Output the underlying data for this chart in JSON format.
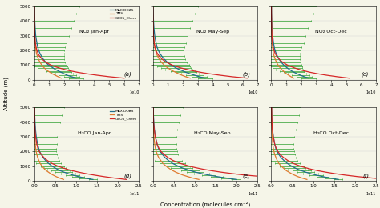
{
  "altitude": [
    100,
    200,
    300,
    400,
    500,
    600,
    700,
    800,
    900,
    1000,
    1200,
    1400,
    1600,
    1800,
    2000,
    2200,
    2500,
    3000,
    3500,
    4000,
    4500,
    5000
  ],
  "no2_jan_apr_maxdoas": [
    28000000000.0,
    25000000000.0,
    22000000000.0,
    20000000000.0,
    18000000000.0,
    16000000000.0,
    14000000000.0,
    12500000000.0,
    11000000000.0,
    9500000000.0,
    7500000000.0,
    6000000000.0,
    4800000000.0,
    3800000000.0,
    3000000000.0,
    2400000000.0,
    1800000000.0,
    1000000000.0,
    650000000.0,
    400000000.0,
    250000000.0,
    150000000.0
  ],
  "no2_jan_apr_tms": [
    18000000000.0,
    16000000000.0,
    14000000000.0,
    12000000000.0,
    10500000000.0,
    9000000000.0,
    7800000000.0,
    6700000000.0,
    5800000000.0,
    5000000000.0,
    3800000000.0,
    2800000000.0,
    2100000000.0,
    1500000000.0,
    1200000000.0,
    900000000.0,
    650000000.0,
    350000000.0,
    200000000.0,
    120000000.0,
    70000000.0,
    40000000.0
  ],
  "no2_jan_apr_geos": [
    60000000000.0,
    50000000000.0,
    42000000000.0,
    35000000000.0,
    29000000000.0,
    24000000000.0,
    20000000000.0,
    16500000000.0,
    13500000000.0,
    11000000000.0,
    7500000000.0,
    5200000000.0,
    3600000000.0,
    2500000000.0,
    1800000000.0,
    1300000000.0,
    800000000.0,
    400000000.0,
    220000000.0,
    130000000.0,
    70000000.0,
    40000000.0
  ],
  "no2_jan_apr_err": [
    5000000000.0,
    5000000000.0,
    6000000000.0,
    6000000000.0,
    7000000000.0,
    8000000000.0,
    9000000000.0,
    10000000000.0,
    11000000000.0,
    12000000000.0,
    13000000000.0,
    14000000000.0,
    15000000000.0,
    16000000000.0,
    17000000000.0,
    18000000000.0,
    20000000000.0,
    22000000000.0,
    24000000000.0,
    26000000000.0,
    28000000000.0,
    30000000000.0
  ],
  "no2_may_sep_maxdoas": [
    35000000000.0,
    31000000000.0,
    28000000000.0,
    25000000000.0,
    22000000000.0,
    20000000000.0,
    17500000000.0,
    15500000000.0,
    13800000000.0,
    12200000000.0,
    9600000000.0,
    7600000000.0,
    6000000000.0,
    4700000000.0,
    3700000000.0,
    2900000000.0,
    2200000000.0,
    1300000000.0,
    800000000.0,
    500000000.0,
    300000000.0,
    180000000.0
  ],
  "no2_may_sep_tms": [
    25000000000.0,
    22000000000.0,
    19500000000.0,
    17200000000.0,
    15200000000.0,
    13300000000.0,
    11600000000.0,
    10000000000.0,
    8700000000.0,
    7500000000.0,
    5700000000.0,
    4300000000.0,
    3200000000.0,
    2400000000.0,
    1800000000.0,
    1400000000.0,
    1000000000.0,
    550000000.0,
    320000000.0,
    180000000.0,
    100000000.0,
    60000000.0
  ],
  "no2_may_sep_geos": [
    63000000000.0,
    53000000000.0,
    45000000000.0,
    38000000000.0,
    32000000000.0,
    27000000000.0,
    22500000000.0,
    18700000000.0,
    15500000000.0,
    12800000000.0,
    8800000000.0,
    6100000000.0,
    4300000000.0,
    3000000000.0,
    2100000000.0,
    1500000000.0,
    950000000.0,
    480000000.0,
    260000000.0,
    150000000.0,
    80000000.0,
    50000000.0
  ],
  "no2_may_sep_err": [
    5000000000.0,
    5000000000.0,
    6000000000.0,
    6000000000.0,
    7000000000.0,
    8000000000.0,
    9000000000.0,
    10000000000.0,
    11000000000.0,
    12000000000.0,
    13000000000.0,
    14000000000.0,
    15000000000.0,
    16000000000.0,
    17000000000.0,
    18000000000.0,
    20000000000.0,
    22000000000.0,
    24000000000.0,
    26000000000.0,
    28000000000.0,
    30000000000.0
  ],
  "no2_oct_dec_maxdoas": [
    25000000000.0,
    22000000000.0,
    19500000000.0,
    17200000000.0,
    15200000000.0,
    13500000000.0,
    12000000000.0,
    10600000000.0,
    9400000000.0,
    8300000000.0,
    6500000000.0,
    5200000000.0,
    4100000000.0,
    3200000000.0,
    2500000000.0,
    2000000000.0,
    1500000000.0,
    900000000.0,
    550000000.0,
    340000000.0,
    200000000.0,
    130000000.0
  ],
  "no2_oct_dec_tms": [
    15000000000.0,
    13200000000.0,
    11600000000.0,
    10200000000.0,
    9000000000.0,
    7900000000.0,
    6900000000.0,
    6000000000.0,
    5200000000.0,
    4500000000.0,
    3400000000.0,
    2600000000.0,
    1900000000.0,
    1400000000.0,
    1100000000.0,
    850000000.0,
    600000000.0,
    330000000.0,
    180000000.0,
    110000000.0,
    60000000.0,
    40000000.0
  ],
  "no2_oct_dec_geos": [
    52000000000.0,
    44000000000.0,
    37000000000.0,
    31000000000.0,
    26000000000.0,
    22000000000.0,
    18500000000.0,
    15500000000.0,
    13000000000.0,
    10700000000.0,
    7400000000.0,
    5200000000.0,
    3600000000.0,
    2500000000.0,
    1800000000.0,
    1300000000.0,
    800000000.0,
    400000000.0,
    220000000.0,
    130000000.0,
    70000000.0,
    40000000.0
  ],
  "no2_oct_dec_err": [
    5000000000.0,
    5000000000.0,
    6000000000.0,
    6000000000.0,
    7000000000.0,
    8000000000.0,
    9000000000.0,
    10000000000.0,
    11000000000.0,
    12000000000.0,
    13000000000.0,
    14000000000.0,
    15000000000.0,
    16000000000.0,
    17000000000.0,
    18000000000.0,
    20000000000.0,
    22000000000.0,
    24000000000.0,
    26000000000.0,
    28000000000.0,
    30000000000.0
  ],
  "hcho_jan_apr_maxdoas": [
    140000000000.0,
    120000000000.0,
    105000000000.0,
    92000000000.0,
    81000000000.0,
    71000000000.0,
    62000000000.0,
    55000000000.0,
    49000000000.0,
    43000000000.0,
    34000000000.0,
    27000000000.0,
    21000000000.0,
    17000000000.0,
    13000000000.0,
    11000000000.0,
    8200000000.0,
    5000000000.0,
    3100000000.0,
    2000000000.0,
    1300000000.0,
    800000000.0
  ],
  "hcho_jan_apr_tms": [
    70000000000.0,
    60000000000.0,
    52000000000.0,
    45000000000.0,
    39000000000.0,
    34000000000.0,
    29000000000.0,
    25000000000.0,
    22000000000.0,
    19000000000.0,
    14000000000.0,
    11000000000.0,
    8200000000.0,
    6300000000.0,
    4800000000.0,
    3700000000.0,
    2600000000.0,
    1500000000.0,
    900000000.0,
    500000000.0,
    300000000.0,
    200000000.0
  ],
  "hcho_jan_apr_geos": [
    220000000000.0,
    190000000000.0,
    165000000000.0,
    143000000000.0,
    123000000000.0,
    106000000000.0,
    91000000000.0,
    78000000000.0,
    67000000000.0,
    57000000000.0,
    42000000000.0,
    31000000000.0,
    23000000000.0,
    17000000000.0,
    12000000000.0,
    9000000000.0,
    6200000000.0,
    3400000000.0,
    1900000000.0,
    1100000000.0,
    700000000.0,
    400000000.0
  ],
  "hcho_jan_apr_err": [
    10000000000.0,
    12000000000.0,
    14000000000.0,
    16000000000.0,
    18000000000.0,
    20000000000.0,
    22000000000.0,
    24000000000.0,
    26000000000.0,
    28000000000.0,
    30000000000.0,
    32000000000.0,
    35000000000.0,
    38000000000.0,
    40000000000.0,
    42000000000.0,
    45000000000.0,
    50000000000.0,
    55000000000.0,
    60000000000.0,
    65000000000.0,
    70000000000.0
  ],
  "hcho_may_sep_maxdoas": [
    200000000000.0,
    175000000000.0,
    153000000000.0,
    134000000000.0,
    117000000000.0,
    102000000000.0,
    90000000000.0,
    79000000000.0,
    69000000000.0,
    61000000000.0,
    47000000000.0,
    37000000000.0,
    29000000000.0,
    23000000000.0,
    18000000000.0,
    14000000000.0,
    10500000000.0,
    6400000000.0,
    4000000000.0,
    2500000000.0,
    1600000000.0,
    1000000000.0
  ],
  "hcho_may_sep_tms": [
    110000000000.0,
    95000000000.0,
    83000000000.0,
    72000000000.0,
    63000000000.0,
    55000000000.0,
    48000000000.0,
    42000000000.0,
    37000000000.0,
    32000000000.0,
    24000000000.0,
    19000000000.0,
    14000000000.0,
    11000000000.0,
    8500000000.0,
    6500000000.0,
    4700000000.0,
    2700000000.0,
    1600000000.0,
    1000000000.0,
    600000000.0,
    400000000.0
  ],
  "hcho_may_sep_geos": [
    350000000000.0,
    300000000000.0,
    260000000000.0,
    220000000000.0,
    190000000000.0,
    163000000000.0,
    140000000000.0,
    120000000000.0,
    103000000000.0,
    88000000000.0,
    65000000000.0,
    48000000000.0,
    36000000000.0,
    27000000000.0,
    20000000000.0,
    15000000000.0,
    10500000000.0,
    6000000000.0,
    3500000000.0,
    2000000000.0,
    1200000000.0,
    700000000.0
  ],
  "hcho_may_sep_err": [
    10000000000.0,
    12000000000.0,
    14000000000.0,
    16000000000.0,
    18000000000.0,
    20000000000.0,
    22000000000.0,
    24000000000.0,
    26000000000.0,
    28000000000.0,
    30000000000.0,
    32000000000.0,
    35000000000.0,
    38000000000.0,
    40000000000.0,
    42000000000.0,
    45000000000.0,
    50000000000.0,
    55000000000.0,
    60000000000.0,
    65000000000.0,
    70000000000.0
  ],
  "hcho_oct_dec_maxdoas": [
    160000000000.0,
    140000000000.0,
    122000000000.0,
    107000000000.0,
    94000000000.0,
    82000000000.0,
    72000000000.0,
    63000000000.0,
    56000000000.0,
    49000000000.0,
    38000000000.0,
    30000000000.0,
    23000000000.0,
    18000000000.0,
    14000000000.0,
    11000000000.0,
    8300000000.0,
    5000000000.0,
    3100000000.0,
    2000000000.0,
    1200000000.0,
    800000000.0
  ],
  "hcho_oct_dec_tms": [
    85000000000.0,
    73000000000.0,
    63000000000.0,
    55000000000.0,
    48000000000.0,
    42000000000.0,
    36000000000.0,
    32000000000.0,
    28000000000.0,
    24000000000.0,
    18000000000.0,
    14000000000.0,
    11000000000.0,
    8300000000.0,
    6400000000.0,
    5000000000.0,
    3600000000.0,
    2100000000.0,
    1200000000.0,
    700000000.0,
    400000000.0,
    300000000.0
  ],
  "hcho_oct_dec_geos": [
    280000000000.0,
    240000000000.0,
    205000000000.0,
    176000000000.0,
    151000000000.0,
    130000000000.0,
    111000000000.0,
    95000000000.0,
    82000000000.0,
    70000000000.0,
    52000000000.0,
    39000000000.0,
    29000000000.0,
    21000000000.0,
    16000000000.0,
    12000000000.0,
    8300000000.0,
    4700000000.0,
    2700000000.0,
    1600000000.0,
    900000000.0,
    600000000.0
  ],
  "hcho_oct_dec_err": [
    10000000000.0,
    12000000000.0,
    14000000000.0,
    16000000000.0,
    18000000000.0,
    20000000000.0,
    22000000000.0,
    24000000000.0,
    26000000000.0,
    28000000000.0,
    30000000000.0,
    32000000000.0,
    35000000000.0,
    38000000000.0,
    40000000000.0,
    42000000000.0,
    45000000000.0,
    50000000000.0,
    55000000000.0,
    60000000000.0,
    65000000000.0,
    70000000000.0
  ],
  "color_maxdoas": "#1f6e8c",
  "color_tms": "#e07b30",
  "color_geos": "#d62728",
  "color_errbar": "#2ca02c",
  "bg_color": "#f5f5e8",
  "panel_labels": [
    "(a)",
    "(b)",
    "(c)",
    "(d)",
    "(e)",
    "(f)"
  ],
  "titles_row1": [
    "NO₂ Jan-Apr",
    "NO₂ May-Sep",
    "NO₂ Oct-Dec"
  ],
  "titles_row2": [
    "H₂CO Jan-Apr",
    "H₂CO May-Sep",
    "H₂CO Oct-Dec"
  ],
  "ylabel": "Altitude (m)",
  "xlabel": "Concentration (molecules.cm⁻²)",
  "ylim": [
    0,
    5000
  ],
  "no2_xlim": [
    0,
    70000000000.0
  ],
  "hcho_xlim": [
    0,
    250000000000.0
  ],
  "legend_labels": [
    "MAX-DOAS",
    "TMS",
    "GEOS_Chem"
  ]
}
